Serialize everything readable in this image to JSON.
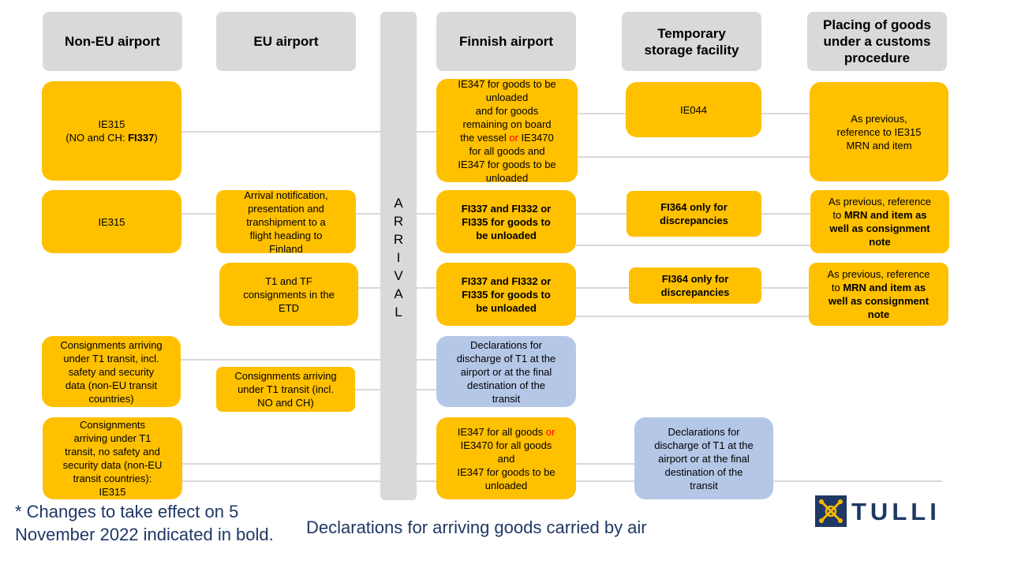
{
  "headers": {
    "non_eu": "Non-EU airport",
    "eu": "EU airport",
    "finnish": "Finnish airport",
    "temp": "Temporary\nstorage facility",
    "placing": "Placing of goods\nunder a customs\nprocedure"
  },
  "arrival": "A\nR\nR\nI\nV\nA\nL",
  "row1": {
    "non_eu_a": "IE315\n(NO and CH:  ",
    "non_eu_b": "FI337",
    "non_eu_c": ")",
    "finnish_a": "IE347 for goods to be\nunloaded\nand for goods\nremaining on board\nthe vessel ",
    "finnish_or": "or",
    "finnish_b": " IE3470\nfor all goods and\nIE347 for goods to be\nunloaded",
    "temp": "IE044",
    "placing": "As previous,\nreference to IE315\nMRN and item"
  },
  "row2": {
    "non_eu": "IE315",
    "eu": "Arrival notification,\npresentation and\ntranshipment to a\nflight heading to\nFinland",
    "finnish": "FI337 and FI332 or\nFI335 for goods to\nbe unloaded",
    "temp": "FI364 only for\ndiscrepancies",
    "placing_a": "As previous, reference\nto ",
    "placing_b": "MRN and item as\nwell as consignment\nnote"
  },
  "row3": {
    "eu": "T1 and TF\nconsignments in the\nETD",
    "finnish": "FI337 and FI332 or\nFI335 for goods to\nbe unloaded",
    "temp": "FI364 only for\ndiscrepancies",
    "placing_a": "As previous, reference\nto ",
    "placing_b": "MRN and item as\nwell as consignment\nnote"
  },
  "row4": {
    "non_eu": "Consignments arriving\nunder T1 transit, incl.\nsafety and security\ndata (non-EU transit\ncountries)",
    "eu": "Consignments arriving\nunder T1 transit (incl.\nNO and CH)",
    "finnish": "Declarations for\ndischarge of T1 at the\nairport or at the final\ndestination of the\ntransit"
  },
  "row5": {
    "non_eu": "Consignments\narriving under T1\ntransit, no safety and\nsecurity data (non-EU\ntransit countries):\nIE315",
    "finnish_a": "IE347 for all goods ",
    "finnish_or": "or",
    "finnish_b": "\nIE3470 for all goods\nand\nIE347 for goods to be\nunloaded",
    "temp": "Declarations for\ndischarge of T1 at the\nairport or at the final\ndestination of the\ntransit"
  },
  "footnote": "* Changes to take effect on 5 November 2022 indicated in bold.",
  "caption": "Declarations for arriving goods carried by air",
  "logo_text": "TULLI",
  "colors": {
    "header_grey": "#d9d9d9",
    "box_yellow": "#ffc000",
    "box_blue": "#b4c7e7",
    "text_navy": "#1f3864",
    "highlight_red": "#ff0000"
  }
}
